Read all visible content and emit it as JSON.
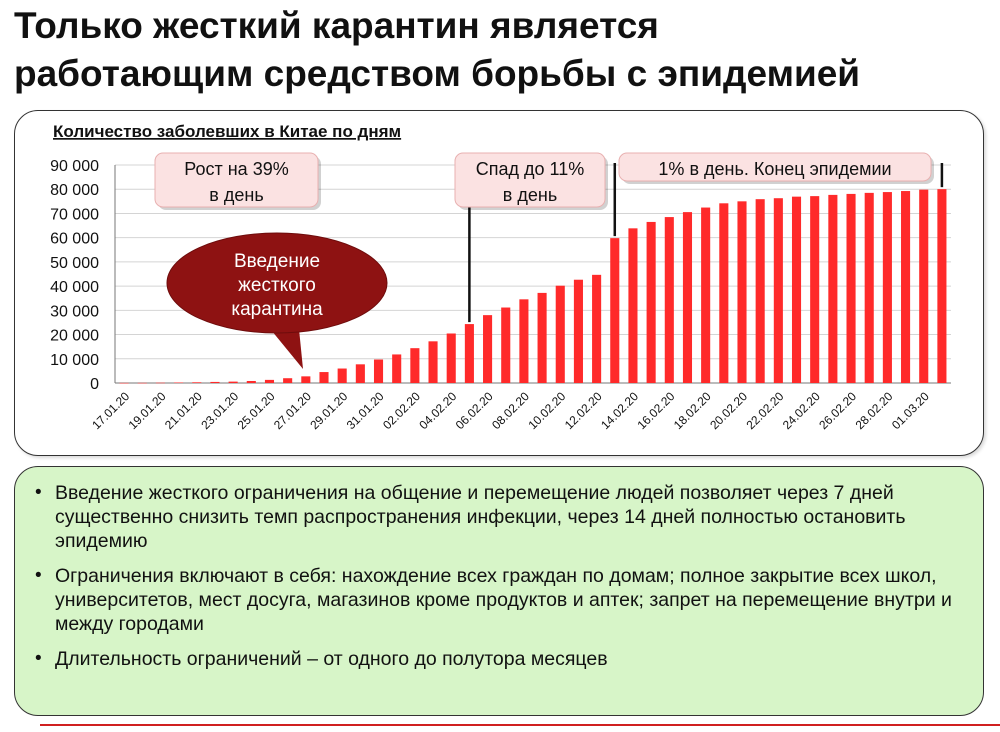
{
  "slide": {
    "title_line1": "Только жесткий карантин является",
    "title_line2": "работающим средством борьбы с эпидемией"
  },
  "chart_data": {
    "type": "bar",
    "title": "Количество заболевших в Китае по дням",
    "ylim": [
      0,
      90000
    ],
    "y_ticks": [
      "0",
      "10 000",
      "20 000",
      "30 000",
      "40 000",
      "50 000",
      "60 000",
      "70 000",
      "80 000",
      "90 000"
    ],
    "categories": [
      "17.01.20",
      "18.01.20",
      "19.01.20",
      "20.01.20",
      "21.01.20",
      "22.01.20",
      "23.01.20",
      "24.01.20",
      "25.01.20",
      "26.01.20",
      "27.01.20",
      "28.01.20",
      "29.01.20",
      "30.01.20",
      "31.01.20",
      "01.02.20",
      "02.02.20",
      "03.02.20",
      "04.02.20",
      "05.02.20",
      "06.02.20",
      "07.02.20",
      "08.02.20",
      "09.02.20",
      "10.02.20",
      "11.02.20",
      "12.02.20",
      "13.02.20",
      "14.02.20",
      "15.02.20",
      "16.02.20",
      "17.02.20",
      "18.02.20",
      "19.02.20",
      "20.02.20",
      "21.02.20",
      "22.02.20",
      "23.02.20",
      "24.02.20",
      "25.02.20",
      "26.02.20",
      "27.02.20",
      "28.02.20",
      "29.02.20",
      "01.03.20",
      "02.03.20"
    ],
    "x_tick_labels": [
      "17.01.20",
      "19.01.20",
      "21.01.20",
      "23.01.20",
      "25.01.20",
      "27.01.20",
      "29.01.20",
      "31.01.20",
      "02.02.20",
      "04.02.20",
      "06.02.20",
      "08.02.20",
      "10.02.20",
      "12.02.20",
      "14.02.20",
      "16.02.20",
      "18.02.20",
      "20.02.20",
      "22.02.20",
      "24.02.20",
      "26.02.20",
      "28.02.20",
      "01.03.20"
    ],
    "values": [
      45,
      62,
      121,
      198,
      291,
      440,
      571,
      830,
      1287,
      1975,
      2744,
      4515,
      5974,
      7711,
      9692,
      11791,
      14380,
      17205,
      20438,
      24324,
      28018,
      31161,
      34546,
      37198,
      40171,
      42638,
      44653,
      59804,
      63851,
      66492,
      68500,
      70548,
      72436,
      74185,
      75002,
      75891,
      76288,
      76936,
      77150,
      77658,
      78064,
      78497,
      78824,
      79251,
      79824,
      80026
    ],
    "grid": true,
    "bar_color": "#ff2a2a"
  },
  "annotations": {
    "growth": "Рост на 39% в день",
    "decline": "Спад до 11% в день",
    "end": "1% в день. Конец эпидемии",
    "quarantine": "Введение жесткого карантина"
  },
  "bullets": [
    "Введение жесткого ограничения на общение и перемещение людей позволяет через 7 дней существенно снизить темп распространения инфекции, через 14 дней полностью остановить эпидемию",
    "Ограничения включают в себя: нахождение всех граждан по домам; полное закрытие всех школ, университетов, мест досуга, магазинов кроме продуктов и аптек; запрет на перемещение внутри и между городами",
    "Длительность ограничений – от одного до полутора месяцев"
  ]
}
